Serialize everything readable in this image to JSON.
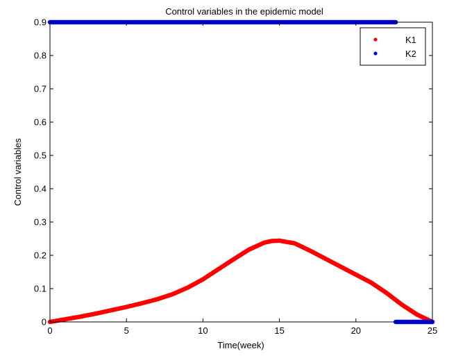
{
  "chart_data": {
    "type": "scatter",
    "title": "Control variables in the epidemic model",
    "xlabel": "Time(week)",
    "ylabel": "Control variables",
    "xlim": [
      0,
      25
    ],
    "ylim": [
      0,
      0.9
    ],
    "xticks": [
      0,
      5,
      10,
      15,
      20,
      25
    ],
    "xtick_labels": [
      "0",
      "5",
      "10",
      "15",
      "20",
      "25"
    ],
    "yticks": [
      0,
      0.1,
      0.2,
      0.3,
      0.4,
      0.5,
      0.6,
      0.7,
      0.8,
      0.9
    ],
    "ytick_labels": [
      "0",
      "0.1",
      "0.2",
      "0.3",
      "0.4",
      "0.5",
      "0.6",
      "0.7",
      "0.8",
      "0.9"
    ],
    "grid": false,
    "legend_position": "top-right",
    "series": [
      {
        "name": "K1",
        "color": "#ff0000",
        "marker": "dot",
        "points": [
          [
            0,
            0.0
          ],
          [
            1,
            0.008
          ],
          [
            2,
            0.016
          ],
          [
            3,
            0.025
          ],
          [
            4,
            0.035
          ],
          [
            5,
            0.045
          ],
          [
            6,
            0.056
          ],
          [
            7,
            0.068
          ],
          [
            8,
            0.083
          ],
          [
            9,
            0.103
          ],
          [
            10,
            0.128
          ],
          [
            11,
            0.158
          ],
          [
            12,
            0.188
          ],
          [
            13,
            0.217
          ],
          [
            14,
            0.238
          ],
          [
            14.5,
            0.243
          ],
          [
            15,
            0.244
          ],
          [
            16,
            0.236
          ],
          [
            17,
            0.214
          ],
          [
            18,
            0.19
          ],
          [
            19,
            0.166
          ],
          [
            20,
            0.142
          ],
          [
            21,
            0.118
          ],
          [
            22,
            0.087
          ],
          [
            23,
            0.052
          ],
          [
            24,
            0.022
          ],
          [
            25,
            0.0
          ]
        ]
      },
      {
        "name": "K2",
        "color": "#0000ff",
        "marker": "dot",
        "points": [
          [
            0,
            0.9
          ],
          [
            22.6,
            0.9
          ],
          [
            22.6,
            0.0
          ],
          [
            25,
            0.0
          ]
        ]
      }
    ]
  }
}
